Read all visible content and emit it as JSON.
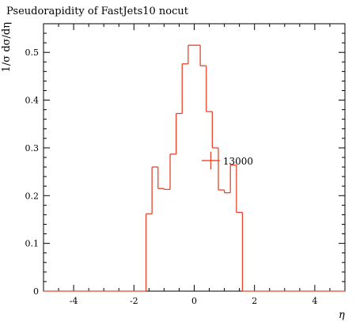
{
  "chart_data": {
    "type": "histogram",
    "title": "Pseudorapidity of FastJets10 nocut",
    "xlabel": "η",
    "ylabel": "1/σ dσ/dη",
    "xlim": [
      -5,
      5
    ],
    "ylim": [
      0,
      0.56
    ],
    "x_ticks": [
      -4,
      -2,
      0,
      2,
      4
    ],
    "y_ticks": [
      0,
      0.1,
      0.2,
      0.3,
      0.4,
      0.5
    ],
    "x_tick_labels": [
      "-4",
      "-2",
      "0",
      "2",
      "4"
    ],
    "y_tick_labels": [
      "0",
      "0.1",
      "0.2",
      "0.3",
      "0.4",
      "0.5"
    ],
    "grid": false,
    "line_color": "#e8452c",
    "bins": [
      {
        "x_low": -1.6,
        "x_high": -1.4,
        "value": 0.162
      },
      {
        "x_low": -1.4,
        "x_high": -1.2,
        "value": 0.26
      },
      {
        "x_low": -1.2,
        "x_high": -1.0,
        "value": 0.215
      },
      {
        "x_low": -1.0,
        "x_high": -0.8,
        "value": 0.213
      },
      {
        "x_low": -0.8,
        "x_high": -0.6,
        "value": 0.287
      },
      {
        "x_low": -0.6,
        "x_high": -0.4,
        "value": 0.372
      },
      {
        "x_low": -0.4,
        "x_high": -0.2,
        "value": 0.476
      },
      {
        "x_low": -0.2,
        "x_high": 0.0,
        "value": 0.515
      },
      {
        "x_low": 0.0,
        "x_high": 0.2,
        "value": 0.515
      },
      {
        "x_low": 0.2,
        "x_high": 0.4,
        "value": 0.472
      },
      {
        "x_low": 0.4,
        "x_high": 0.6,
        "value": 0.376
      },
      {
        "x_low": 0.6,
        "x_high": 0.8,
        "value": 0.3
      },
      {
        "x_low": 0.8,
        "x_high": 1.0,
        "value": 0.212
      },
      {
        "x_low": 1.0,
        "x_high": 1.2,
        "value": 0.206
      },
      {
        "x_low": 1.2,
        "x_high": 1.4,
        "value": 0.264
      },
      {
        "x_low": 1.4,
        "x_high": 1.6,
        "value": 0.165
      }
    ],
    "annotation": {
      "text": "13000",
      "marker_x_range": [
        0.25,
        0.85
      ],
      "marker_y_range": [
        0.255,
        0.292
      ]
    }
  }
}
